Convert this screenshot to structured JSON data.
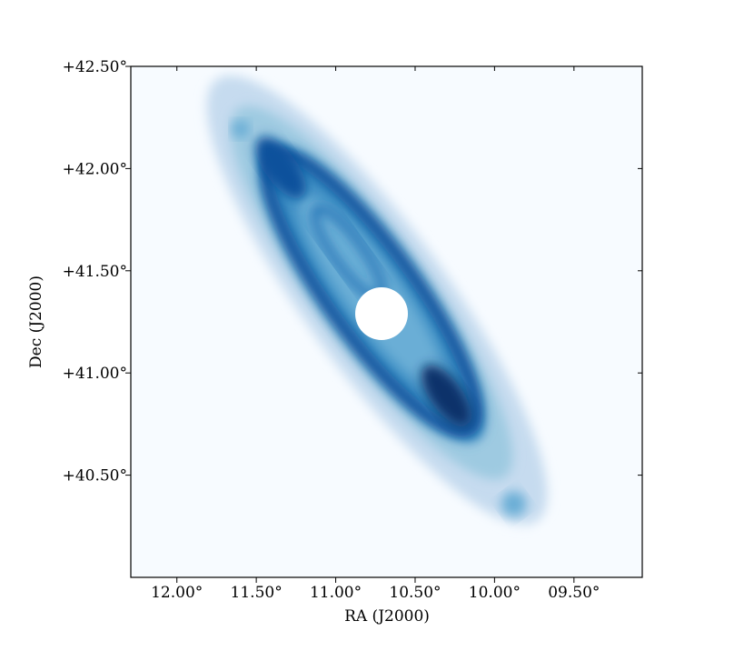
{
  "chart_data": {
    "type": "image",
    "xlabel": "RA (J2000)",
    "ylabel": "Dec (J2000)",
    "xlim": [
      12.29,
      9.07
    ],
    "ylim": [
      40.0,
      42.5
    ],
    "xticks": [
      {
        "value": 12.0,
        "label": "12.00°"
      },
      {
        "value": 11.5,
        "label": "11.50°"
      },
      {
        "value": 11.0,
        "label": "11.00°"
      },
      {
        "value": 10.5,
        "label": "10.50°"
      },
      {
        "value": 10.0,
        "label": "10.00°"
      },
      {
        "value": 9.5,
        "label": "09.50°"
      }
    ],
    "yticks": [
      {
        "value": 42.5,
        "label": "+42.50°"
      },
      {
        "value": 42.0,
        "label": "+42.00°"
      },
      {
        "value": 41.5,
        "label": "+41.50°"
      },
      {
        "value": 41.0,
        "label": "+41.00°"
      },
      {
        "value": 40.5,
        "label": "+40.50°"
      }
    ]
  }
}
